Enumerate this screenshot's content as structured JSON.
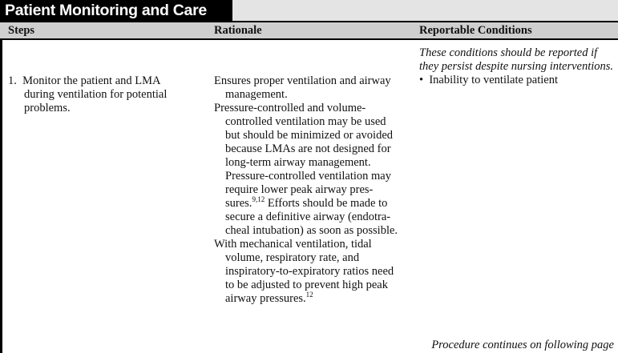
{
  "title": "Patient Monitoring and Care",
  "headers": {
    "steps": "Steps",
    "rationale": "Rationale",
    "reportable": "Reportable Conditions"
  },
  "step": {
    "number": "1.",
    "lines": [
      "Monitor the patient and LMA",
      "during ventilation for potential",
      "problems."
    ]
  },
  "rationale": [
    {
      "lines": [
        "Ensures proper ventilation and airway",
        "management."
      ]
    },
    {
      "lines": [
        "Pressure-controlled and volume-",
        "controlled ventilation may be used",
        "but should be minimized or avoided",
        "because LMAs are not designed for",
        "long-term airway management.",
        "Pressure-controlled ventilation may",
        "require lower peak airway pres-",
        "sures.",
        "Efforts should be made to",
        "secure a definitive airway (endotra-",
        "cheal intubation) as soon as possible."
      ],
      "ref": "9,12"
    },
    {
      "lines": [
        "With mechanical ventilation, tidal",
        "volume, respiratory rate, and",
        "inspiratory-to-expiratory ratios need",
        "to be adjusted to prevent high peak",
        "airway pressures."
      ],
      "ref": "12"
    }
  ],
  "reportable": {
    "note": [
      "These conditions should be reported if",
      "they persist despite nursing interventions."
    ],
    "bullet": "•",
    "items": [
      "Inability to ventilate patient"
    ]
  },
  "footer": "Procedure continues on following page"
}
